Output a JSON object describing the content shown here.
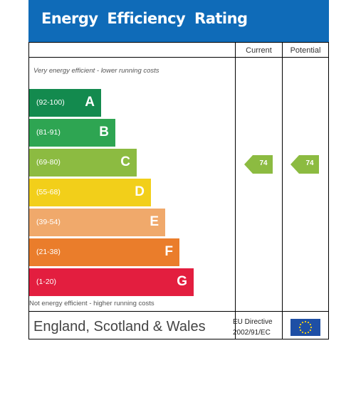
{
  "title": "Energy Efficiency Rating",
  "columns": {
    "current": "Current",
    "potential": "Potential"
  },
  "notes": {
    "top": "Very energy efficient - lower running costs",
    "bottom": "Not energy efficient - higher running costs"
  },
  "bands": [
    {
      "range": "(92-100)",
      "letter": "A",
      "color": "#138a4e"
    },
    {
      "range": "(81-91)",
      "letter": "B",
      "color": "#2ea552"
    },
    {
      "range": "(69-80)",
      "letter": "C",
      "color": "#8cbb41"
    },
    {
      "range": "(55-68)",
      "letter": "D",
      "color": "#f2cf1a"
    },
    {
      "range": "(39-54)",
      "letter": "E",
      "color": "#f0a96b"
    },
    {
      "range": "(21-38)",
      "letter": "F",
      "color": "#ea7d2b"
    },
    {
      "range": "(1-20)",
      "letter": "G",
      "color": "#e31e3f"
    }
  ],
  "ratings": {
    "current": "74",
    "potential": "74",
    "color": "#8cbb41"
  },
  "footer": {
    "region": "England, Scotland & Wales",
    "directive_line1": "EU Directive",
    "directive_line2": "2002/91/EC",
    "flag": "eu-flag-icon"
  }
}
